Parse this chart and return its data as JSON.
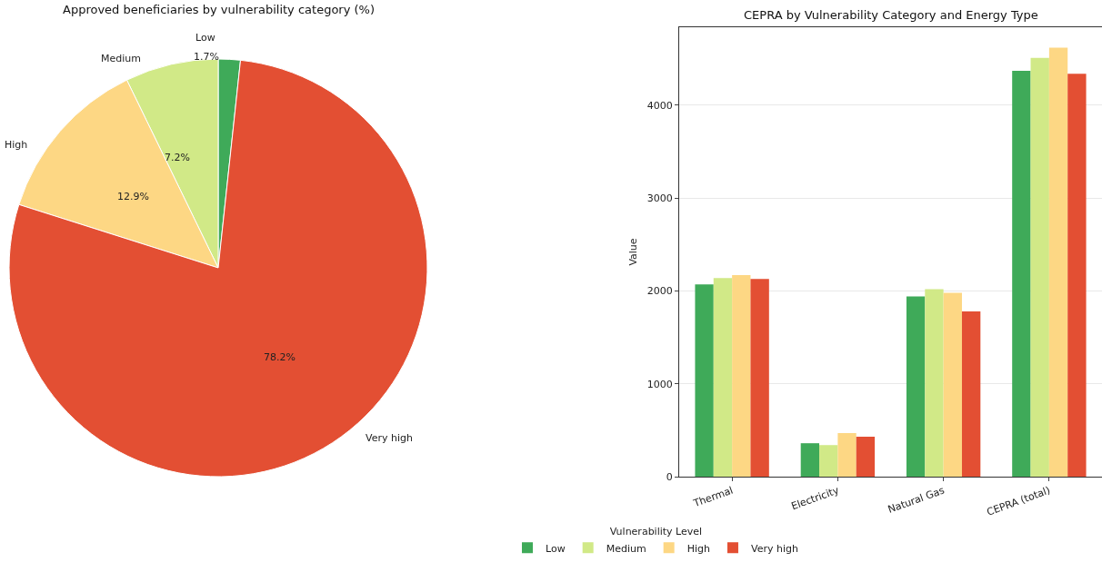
{
  "chart_data": [
    {
      "type": "pie",
      "title": "Approved beneficiaries by vulnerability category (%)",
      "categories": [
        "Low",
        "Medium",
        "High",
        "Very high"
      ],
      "values": [
        1.7,
        7.2,
        12.9,
        78.2
      ],
      "colors": [
        "#3faa59",
        "#d1e987",
        "#fdd784",
        "#e34f33"
      ],
      "value_labels": [
        "1.7%",
        "7.2%",
        "12.9%",
        "78.2%"
      ],
      "legend": false
    },
    {
      "type": "bar",
      "title": "CEPRA by Vulnerability Category and Energy Type",
      "ylabel": "Value",
      "legend_title": "Vulnerability Level",
      "legend": "bottom",
      "grid": "y",
      "categories": [
        "Thermal",
        "Electricity",
        "Natural Gas",
        "CEPRA (total)"
      ],
      "ylim": [
        0,
        4840
      ],
      "yticks": [
        0,
        1000,
        2000,
        3000,
        4000
      ],
      "series": [
        {
          "name": "Low",
          "color": "#3faa59",
          "values": [
            2070,
            360,
            1940,
            4370
          ]
        },
        {
          "name": "Medium",
          "color": "#d1e987",
          "values": [
            2140,
            340,
            2020,
            4510
          ]
        },
        {
          "name": "High",
          "color": "#fdd784",
          "values": [
            2170,
            470,
            1980,
            4620
          ]
        },
        {
          "name": "Very high",
          "color": "#e34f33",
          "values": [
            2130,
            430,
            1780,
            4340
          ]
        }
      ]
    }
  ]
}
